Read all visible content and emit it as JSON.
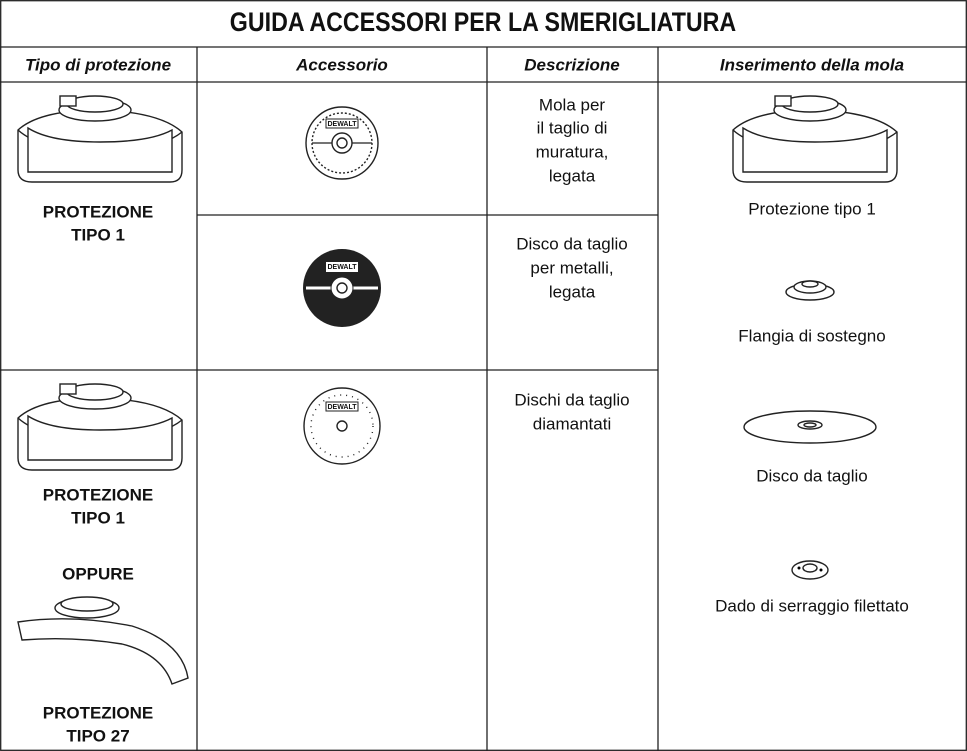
{
  "title": "GUIDA ACCESSORI PER LA SMERIGLIATURA",
  "headers": [
    "Tipo di protezione",
    "Accessorio",
    "Descrizione",
    "Inserimento della mola"
  ],
  "guards": [
    {
      "label": [
        "PROTEZIONE",
        "TIPO 1"
      ]
    },
    {
      "label": [
        "PROTEZIONE",
        "TIPO 1"
      ],
      "or": "OPPURE",
      "label2": [
        "PROTEZIONE",
        "TIPO 27"
      ]
    }
  ],
  "accessories": [
    {
      "brand": "DEWALT",
      "description": [
        "Mola per",
        "il taglio di",
        "muratura,",
        "legata"
      ]
    },
    {
      "brand": "DEWALT",
      "description": [
        "Disco da taglio",
        "per metalli,",
        "legata"
      ]
    },
    {
      "brand": "DEWALT",
      "description": [
        "Dischi da taglio",
        "diamantati"
      ]
    }
  ],
  "assembly": [
    "Protezione tipo 1",
    "Flangia di sostegno",
    "Disco da taglio",
    "Dado di serraggio filettato"
  ]
}
